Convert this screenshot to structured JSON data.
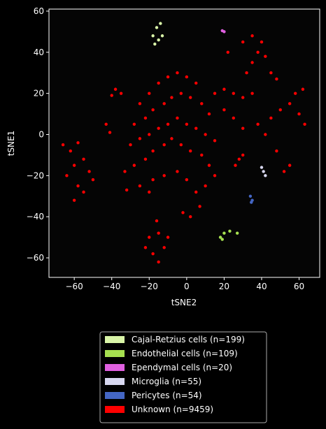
{
  "chart_data": {
    "type": "scatter",
    "xlabel": "tSNE2",
    "ylabel": "tSNE1",
    "xlim": [
      -73.5,
      71
    ],
    "ylim": [
      -69.5,
      61
    ],
    "xticks": [
      -60,
      -40,
      -20,
      0,
      20,
      40,
      60
    ],
    "yticks": [
      -60,
      -40,
      -20,
      0,
      20,
      40,
      60
    ],
    "series": [
      {
        "name": "Cajal-Retzius cells (n=199)",
        "color": "#d9f5a8",
        "x": [
          -18,
          -16,
          -14,
          -15,
          -13,
          -17
        ],
        "y": [
          48,
          52,
          54,
          46,
          48,
          44
        ]
      },
      {
        "name": "Endothelial cells (n=109)",
        "color": "#a6e050",
        "x": [
          18,
          20,
          23,
          27,
          19
        ],
        "y": [
          -50,
          -48,
          -47,
          -48,
          -51
        ]
      },
      {
        "name": "Ependymal cells (n=20)",
        "color": "#e060e0",
        "x": [
          19,
          20
        ],
        "y": [
          50.5,
          50
        ]
      },
      {
        "name": "Microglia (n=55)",
        "color": "#d8d8f0",
        "x": [
          40,
          41,
          42
        ],
        "y": [
          -16,
          -18,
          -20
        ]
      },
      {
        "name": "Pericytes (n=54)",
        "color": "#4466c4",
        "x": [
          34,
          35,
          34.5
        ],
        "y": [
          -30,
          -32,
          -33
        ]
      },
      {
        "name": "Unknown (n=9459)",
        "color": "#ff0000",
        "x": [
          -25,
          -20,
          -15,
          -10,
          -5,
          0,
          5,
          -28,
          -22,
          -18,
          -12,
          -8,
          -3,
          2,
          8,
          12,
          -30,
          -25,
          -20,
          -15,
          -10,
          -5,
          0,
          5,
          10,
          15,
          -28,
          -22,
          -18,
          -12,
          -8,
          -3,
          2,
          8,
          12,
          -25,
          -18,
          -12,
          -5,
          0,
          5,
          10,
          15,
          -32,
          -20,
          7,
          2,
          -2,
          15,
          20,
          25,
          30,
          35,
          20,
          25,
          30,
          28,
          26,
          30,
          30,
          35,
          40,
          38,
          42,
          35,
          32,
          22,
          45,
          48,
          38,
          42,
          45,
          50,
          55,
          58,
          62,
          60,
          63,
          52,
          55,
          48,
          -66,
          -62,
          -58,
          -60,
          -55,
          -52,
          -64,
          -58,
          -55,
          -50,
          -60,
          -38,
          -35,
          -40,
          -43,
          -41,
          -33,
          -20,
          -15,
          -12,
          -18,
          -15,
          -10,
          -16,
          -22
        ],
        "y": [
          15,
          20,
          25,
          28,
          30,
          28,
          25,
          5,
          8,
          12,
          15,
          18,
          20,
          18,
          15,
          10,
          -5,
          -2,
          0,
          3,
          5,
          8,
          5,
          3,
          0,
          -3,
          -15,
          -12,
          -8,
          -5,
          -2,
          -5,
          -8,
          -10,
          -15,
          -25,
          -22,
          -20,
          -18,
          -22,
          -28,
          -25,
          -20,
          -27,
          -28,
          -35,
          -40,
          -38,
          20,
          22,
          20,
          18,
          20,
          12,
          8,
          3,
          -12,
          -15,
          -10,
          45,
          48,
          45,
          40,
          38,
          35,
          30,
          40,
          30,
          27,
          5,
          0,
          8,
          12,
          15,
          20,
          22,
          10,
          5,
          -18,
          -15,
          -8,
          -5,
          -8,
          -4,
          -15,
          -12,
          -18,
          -20,
          -25,
          -28,
          -22,
          -32,
          22,
          20,
          19,
          5,
          1,
          -18,
          -50,
          -48,
          -55,
          -58,
          -62,
          -50,
          -42,
          -55
        ]
      }
    ]
  }
}
